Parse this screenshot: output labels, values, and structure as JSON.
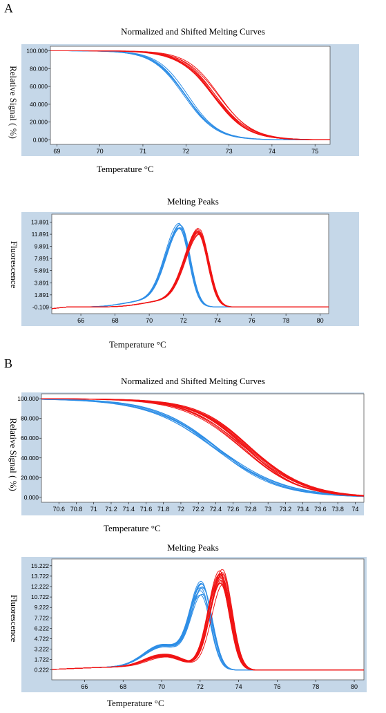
{
  "panels": [
    {
      "letter": "A"
    },
    {
      "letter": "B"
    }
  ],
  "colors": {
    "blue": "#2e8ee6",
    "red": "#f01414",
    "frame": "#c5d7e8"
  },
  "chart_data": [
    {
      "id": "A-melt",
      "type": "line",
      "title": "Normalized and Shifted Melting Curves",
      "xlabel": "Temperature °C",
      "ylabel": "Relative Signal ( %)",
      "xlim": [
        68.85,
        75.35
      ],
      "ylim": [
        -5,
        105
      ],
      "xticks": [
        "69",
        "70",
        "71",
        "72",
        "73",
        "74",
        "75"
      ],
      "xtick_values": [
        69,
        70,
        71,
        72,
        73,
        74,
        75
      ],
      "yticks": [
        "0.000",
        "20.000",
        "40.000",
        "60.000",
        "80.000",
        "100.000"
      ],
      "ytick_values": [
        0,
        20,
        40,
        60,
        80,
        100
      ],
      "series": [
        {
          "color": "blue",
          "kind": "melt",
          "center": 72.0,
          "width": 0.36,
          "count": 6,
          "spread": 0.05
        },
        {
          "color": "red",
          "kind": "melt",
          "center": 72.7,
          "width": 0.4,
          "count": 10,
          "spread": 0.08
        }
      ]
    },
    {
      "id": "A-peak",
      "type": "line",
      "title": "Melting Peaks",
      "xlabel": "Temperature °C",
      "ylabel": "Fluorescence",
      "xlim": [
        64.3,
        80.5
      ],
      "ylim": [
        -1.2,
        15.2
      ],
      "xticks": [
        "66",
        "68",
        "70",
        "72",
        "74",
        "76",
        "78",
        "80"
      ],
      "xtick_values": [
        66,
        68,
        70,
        72,
        74,
        76,
        78,
        80
      ],
      "yticks": [
        "-0.109",
        "1.891",
        "3.891",
        "5.891",
        "7.891",
        "9.891",
        "11.891",
        "13.891"
      ],
      "ytick_values": [
        -0.109,
        1.891,
        3.891,
        5.891,
        7.891,
        9.891,
        11.891,
        13.891
      ],
      "series": [
        {
          "color": "blue",
          "kind": "peak",
          "center": 71.8,
          "height": 13.2,
          "count": 7,
          "spread": 0.08,
          "hspread": 0.7
        },
        {
          "color": "red",
          "kind": "peak",
          "center": 72.9,
          "height": 12.5,
          "count": 10,
          "spread": 0.08,
          "hspread": 0.7
        }
      ]
    },
    {
      "id": "B-melt",
      "type": "line",
      "title": "Normalized and Shifted Melting Curves",
      "xlabel": "Temperature °C",
      "ylabel": "Relative Signal ( %)",
      "xlim": [
        70.4,
        74.1
      ],
      "ylim": [
        -5,
        105
      ],
      "xticks": [
        "70.6",
        "70.8",
        "71",
        "71.2",
        "71.4",
        "71.6",
        "71.8",
        "72",
        "72.2",
        "72.4",
        "72.6",
        "72.8",
        "73",
        "73.2",
        "73.4",
        "73.6",
        "73.8",
        "74"
      ],
      "xtick_values": [
        70.6,
        70.8,
        71,
        71.2,
        71.4,
        71.6,
        71.8,
        72,
        72.2,
        72.4,
        72.6,
        72.8,
        73,
        73.2,
        73.4,
        73.6,
        73.8,
        74
      ],
      "yticks": [
        "0.000",
        "20.000",
        "40.000",
        "60.000",
        "80.000",
        "100.000"
      ],
      "ytick_values": [
        0,
        20,
        40,
        60,
        80,
        100
      ],
      "series": [
        {
          "color": "blue",
          "kind": "melt",
          "center": 72.4,
          "width": 0.38,
          "count": 8,
          "spread": 0.03
        },
        {
          "color": "red",
          "kind": "melt",
          "center": 72.75,
          "width": 0.32,
          "count": 16,
          "spread": 0.06
        }
      ]
    },
    {
      "id": "B-peak",
      "type": "line",
      "title": "Melting Peaks",
      "xlabel": "Temperature °C",
      "ylabel": "Fluorescence",
      "xlim": [
        64.3,
        80.5
      ],
      "ylim": [
        -1.2,
        16.2
      ],
      "xticks": [
        "66",
        "68",
        "70",
        "72",
        "74",
        "76",
        "78",
        "80"
      ],
      "xtick_values": [
        66,
        68,
        70,
        72,
        74,
        76,
        78,
        80
      ],
      "yticks": [
        "0.222",
        "1.722",
        "3.222",
        "4.722",
        "6.222",
        "7.722",
        "9.222",
        "10.722",
        "12.222",
        "13.722",
        "15.222"
      ],
      "ytick_values": [
        0.222,
        1.722,
        3.222,
        4.722,
        6.222,
        7.722,
        9.222,
        10.722,
        12.222,
        13.722,
        15.222
      ],
      "series": [
        {
          "color": "blue",
          "kind": "peak2",
          "center": 72.1,
          "height": 11.3,
          "center2": 70.1,
          "height2": 3.3,
          "count": 10,
          "spread": 0.07,
          "hspread": 1.0
        },
        {
          "color": "red",
          "kind": "peak2",
          "center": 73.1,
          "height": 13.2,
          "center2": 70.2,
          "height2": 1.9,
          "count": 16,
          "spread": 0.1,
          "hspread": 1.4
        }
      ]
    }
  ]
}
